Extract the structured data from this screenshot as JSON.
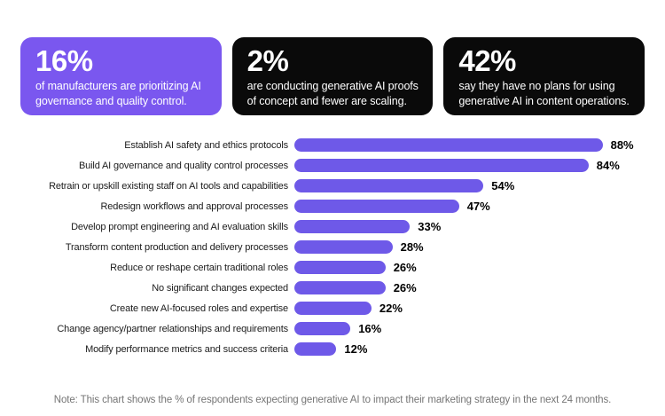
{
  "stat_cards": [
    {
      "value": "16%",
      "desc_line1": "of manufacturers are prioritizing AI",
      "desc_line2": "governance and quality control.",
      "variant": "purple"
    },
    {
      "value": "2%",
      "desc_line1": "are conducting generative AI proofs",
      "desc_line2": "of concept and fewer are scaling.",
      "variant": "black"
    },
    {
      "value": "42%",
      "desc_line1": "say they have no plans for using",
      "desc_line2": "generative AI in content operations.",
      "variant": "black"
    }
  ],
  "chart_data": {
    "type": "bar",
    "orientation": "horizontal",
    "categories": [
      "Establish AI safety and ethics protocols",
      "Build AI governance and quality control processes",
      "Retrain or upskill existing staff on AI tools and capabilities",
      "Redesign workflows and approval processes",
      "Develop prompt engineering and AI evaluation skills",
      "Transform content production and delivery processes",
      "Reduce or reshape certain traditional roles",
      "No significant changes expected",
      "Create new AI-focused roles and expertise",
      "Change agency/partner relationships and requirements",
      "Modify performance metrics and success criteria"
    ],
    "values": [
      88,
      84,
      54,
      47,
      33,
      28,
      26,
      26,
      22,
      16,
      12
    ],
    "value_suffix": "%",
    "xlim": [
      0,
      100
    ],
    "grid": false,
    "legend": false,
    "bar_color": "#6E59E8"
  },
  "note": {
    "text": "Note: This chart shows the % of respondents expecting generative AI to impact their marketing strategy in the next 24 months."
  },
  "colors": {
    "accent_purple": "#7A57EF",
    "card_black": "#0a0a0a",
    "background": "#ffffff",
    "label_text": "#1c1c1c",
    "note_text": "#757575"
  }
}
